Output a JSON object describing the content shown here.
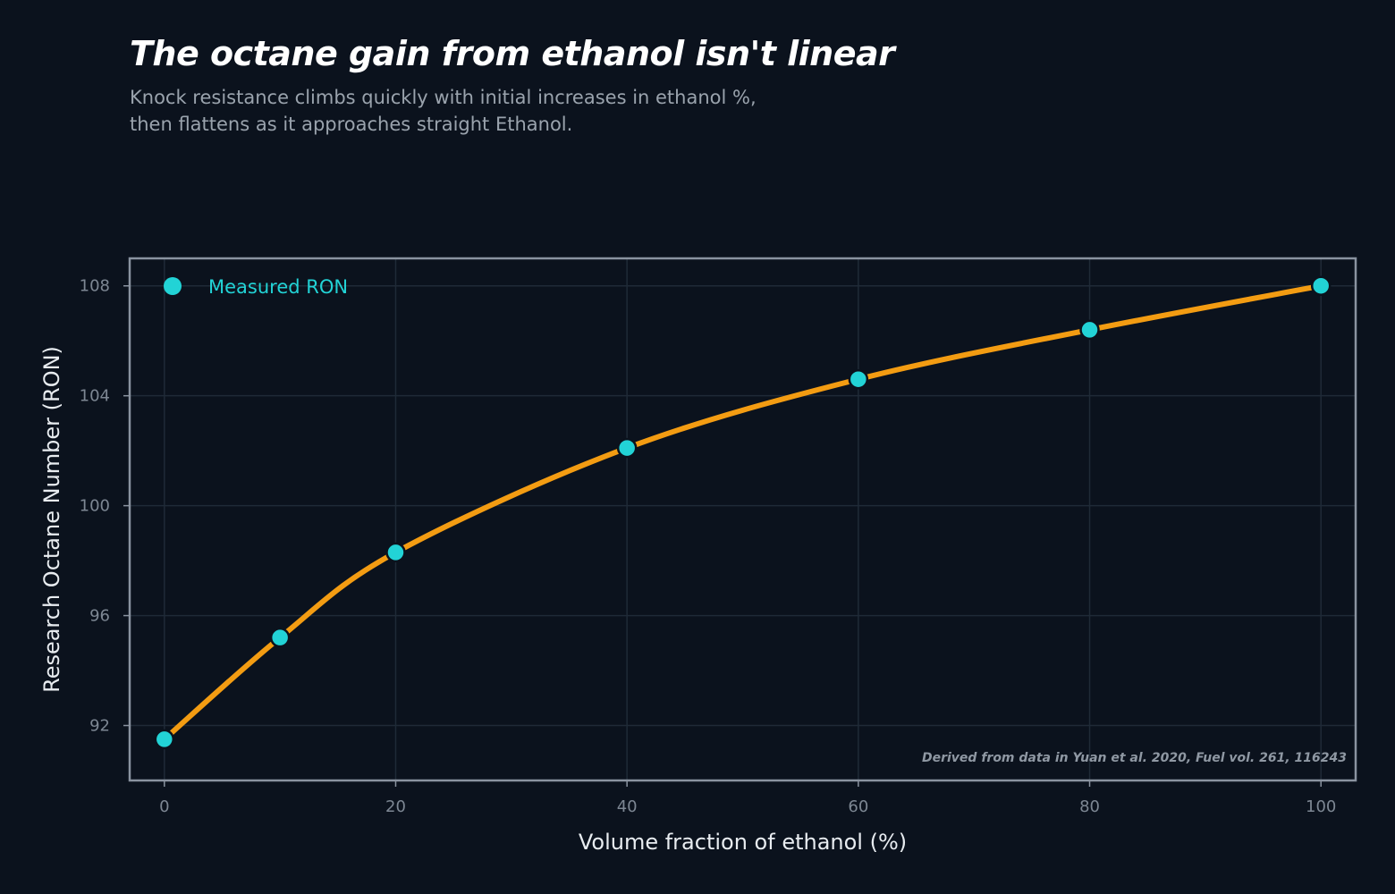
{
  "title": "The octane gain from ethanol isn't linear",
  "subtitle": {
    "line1": "Knock resistance climbs quickly with initial increases in ethanol %,",
    "line2": "then flattens as it approaches straight Ethanol."
  },
  "source_note": "Derived from data in Yuan et al. 2020, Fuel vol. 261, 116243",
  "colors": {
    "background": "#0b121d",
    "line": "#f39c12",
    "marker": "#22d3d6",
    "grid": "#1f2a37",
    "frame": "#8a93a0"
  },
  "chart_data": {
    "type": "line",
    "xlabel": "Volume fraction of ethanol (%)",
    "ylabel": "Research Octane Number (RON)",
    "xlim": [
      -3,
      103
    ],
    "ylim": [
      90,
      109
    ],
    "xticks": [
      0,
      20,
      40,
      60,
      80,
      100
    ],
    "yticks": [
      92,
      96,
      100,
      104,
      108
    ],
    "grid": true,
    "legend_position": "top-left",
    "series": [
      {
        "name": "Measured RON",
        "x": [
          0,
          10,
          20,
          40,
          60,
          80,
          100
        ],
        "y": [
          91.5,
          95.2,
          98.3,
          102.1,
          104.6,
          106.4,
          108.0
        ]
      }
    ]
  }
}
